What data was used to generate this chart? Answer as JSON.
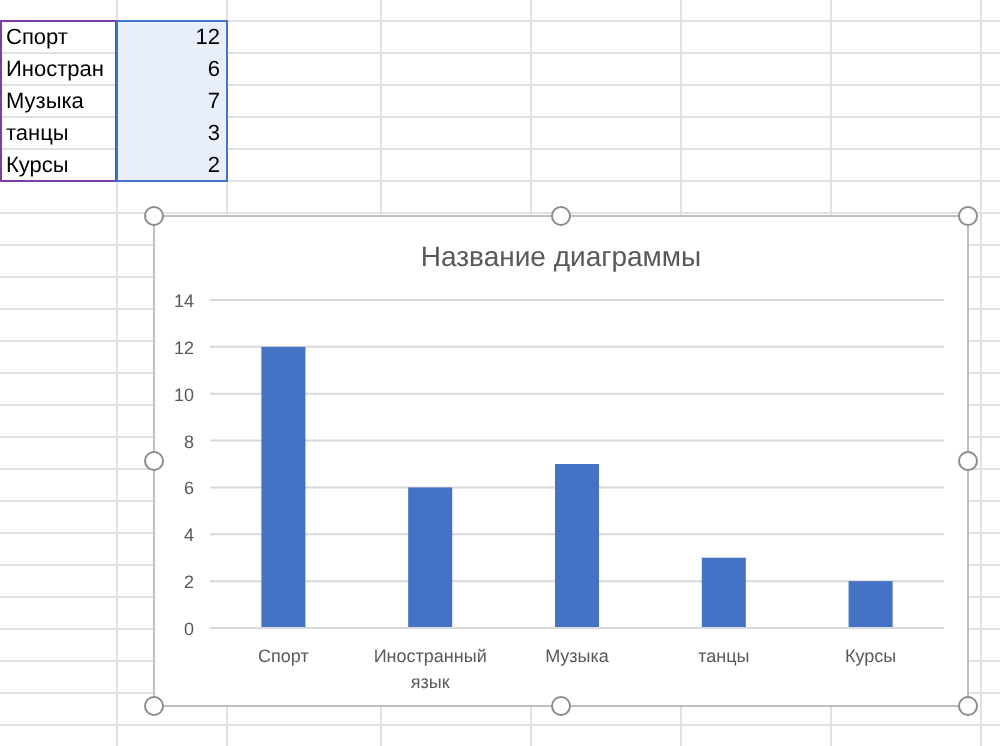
{
  "chart_data": {
    "type": "bar",
    "title": "Название диаграммы",
    "categories": [
      "Спорт",
      "Иностранный язык",
      "Музыка",
      "танцы",
      "Курсы"
    ],
    "values": [
      12,
      6,
      7,
      3,
      2
    ],
    "color": "#4472c4",
    "ylim": [
      0,
      14
    ],
    "yticks": [
      0,
      2,
      4,
      6,
      8,
      10,
      12,
      14
    ],
    "grid": "y",
    "annotations": [
      "Спорт",
      "12",
      "Иностран",
      "6",
      "Музыка",
      "7",
      "танцы",
      "3",
      "Курсы",
      "2"
    ]
  }
}
